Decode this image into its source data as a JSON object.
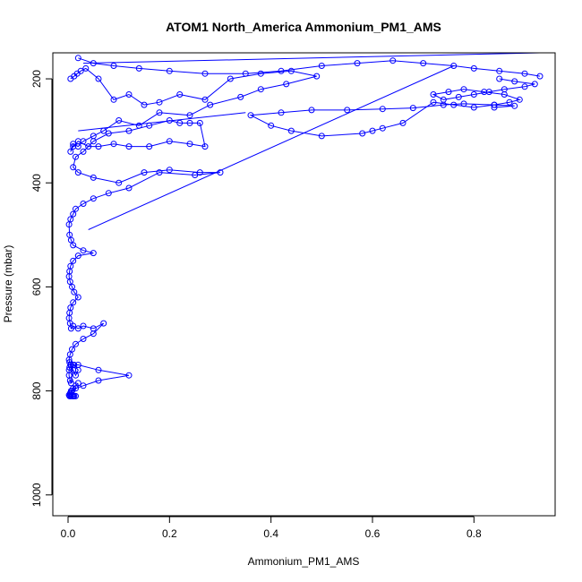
{
  "chart_data": {
    "type": "scatter",
    "title": "ATOM1 North_America Ammonium_PM1_AMS",
    "xlabel": "Ammonium_PM1_AMS",
    "ylabel": "Pressure (mbar)",
    "xlim": [
      -0.03,
      0.96
    ],
    "ylim": [
      1040,
      150
    ],
    "y_reversed": true,
    "x_ticks": [
      0.0,
      0.2,
      0.4,
      0.6,
      0.8
    ],
    "x_tick_labels": [
      "0.0",
      "0.2",
      "0.4",
      "0.6",
      "0.8"
    ],
    "y_ticks": [
      200,
      400,
      600,
      800,
      1000
    ],
    "y_tick_labels": [
      "200",
      "400",
      "600",
      "800",
      "1000"
    ],
    "grid": false,
    "marker": "open-circle",
    "connected": true,
    "color": "#0000ff",
    "series": [
      {
        "x": [
          0.005,
          0.012,
          0.018,
          0.025,
          0.035,
          0.06,
          0.09,
          0.12,
          0.15,
          0.18,
          0.22,
          0.27,
          0.32,
          0.38,
          0.44,
          0.49,
          0.43,
          0.38,
          0.34,
          0.28,
          0.24,
          0.18,
          0.14,
          0.1,
          0.07,
          0.05,
          0.03,
          0.02,
          0.01,
          0.005,
          0.01,
          0.02,
          0.04,
          0.06,
          0.09,
          0.12,
          0.16,
          0.2,
          0.24,
          0.27,
          0.26,
          0.24,
          0.22,
          0.2,
          0.16,
          0.12,
          0.08,
          0.05,
          0.03,
          0.015,
          0.01,
          0.02,
          0.05,
          0.1,
          0.15,
          0.2,
          0.26,
          0.3,
          0.25,
          0.18,
          0.12,
          0.08,
          0.05,
          0.03,
          0.015,
          0.01,
          0.005,
          0.002,
          0.003,
          0.006,
          0.01,
          0.03,
          0.05,
          0.02,
          0.01,
          0.005,
          0.003,
          0.002,
          0.004,
          0.008,
          0.012,
          0.02,
          0.01,
          0.005,
          0.003,
          0.002,
          0.004,
          0.006,
          0.01,
          0.02,
          0.03,
          0.05,
          0.07,
          0.05,
          0.03,
          0.015,
          0.008,
          0.004,
          0.002,
          0.003,
          0.005,
          0.01,
          0.015,
          0.02,
          0.012,
          0.006,
          0.003,
          0.002,
          0.002,
          0.004,
          0.006,
          0.01,
          0.02,
          0.06,
          0.12,
          0.06,
          0.03,
          0.015,
          0.008,
          0.004,
          0.002,
          0.003,
          0.005,
          0.008,
          0.012,
          0.015,
          0.01,
          0.005,
          0.004,
          0.006,
          0.01,
          0.015,
          0.02
        ],
        "y": [
          200,
          195,
          190,
          185,
          180,
          200,
          240,
          230,
          250,
          245,
          230,
          240,
          200,
          190,
          185,
          195,
          210,
          220,
          235,
          250,
          270,
          265,
          290,
          280,
          300,
          310,
          320,
          330,
          325,
          340,
          330,
          320,
          330,
          330,
          325,
          330,
          330,
          320,
          325,
          330,
          285,
          285,
          285,
          280,
          290,
          300,
          305,
          320,
          340,
          350,
          370,
          380,
          390,
          400,
          380,
          375,
          380,
          380,
          385,
          380,
          410,
          420,
          430,
          440,
          450,
          460,
          470,
          480,
          500,
          510,
          520,
          530,
          535,
          540,
          550,
          560,
          570,
          580,
          590,
          600,
          610,
          620,
          630,
          640,
          650,
          660,
          670,
          680,
          675,
          680,
          675,
          680,
          670,
          690,
          700,
          710,
          720,
          730,
          740,
          745,
          750,
          760,
          770,
          760,
          750,
          750,
          755,
          760,
          770,
          780,
          785,
          750,
          750,
          760,
          770,
          780,
          790,
          795,
          800,
          805,
          808,
          810,
          810,
          810,
          810,
          810,
          810,
          808,
          805,
          800,
          795,
          790,
          785
        ],
        "id": "flight_low"
      },
      {
        "x": [
          0.85,
          0.88,
          0.92,
          0.9,
          0.86,
          0.83,
          0.8,
          0.77,
          0.74,
          0.72,
          0.75,
          0.78,
          0.82,
          0.86,
          0.89,
          0.87,
          0.84,
          0.8,
          0.76,
          0.72,
          0.66,
          0.62,
          0.6,
          0.58,
          0.5,
          0.44,
          0.4,
          0.36,
          0.42,
          0.48,
          0.55,
          0.62,
          0.68,
          0.74,
          0.78,
          0.84,
          0.88,
          0.84
        ],
        "y": [
          200,
          205,
          210,
          215,
          220,
          225,
          230,
          235,
          240,
          230,
          225,
          220,
          225,
          230,
          240,
          245,
          250,
          255,
          250,
          245,
          285,
          295,
          300,
          305,
          310,
          300,
          290,
          270,
          265,
          260,
          260,
          258,
          256,
          250,
          248,
          250,
          252,
          255
        ],
        "id": "flight_high"
      },
      {
        "x": [
          0.02,
          0.05,
          0.09,
          0.14,
          0.2,
          0.27,
          0.35,
          0.42,
          0.5,
          0.57,
          0.64,
          0.7,
          0.76,
          0.8,
          0.85,
          0.9,
          0.93
        ],
        "y": [
          160,
          170,
          175,
          180,
          185,
          190,
          190,
          185,
          175,
          170,
          165,
          170,
          175,
          180,
          185,
          190,
          195
        ],
        "id": "flight_top"
      }
    ],
    "connectors": [
      {
        "x": [
          0.04,
          0.76
        ],
        "y": [
          490,
          175
        ]
      },
      {
        "x": [
          0.03,
          0.93
        ],
        "y": [
          170,
          150
        ]
      },
      {
        "x": [
          0.02,
          0.35
        ],
        "y": [
          300,
          265
        ]
      }
    ]
  }
}
